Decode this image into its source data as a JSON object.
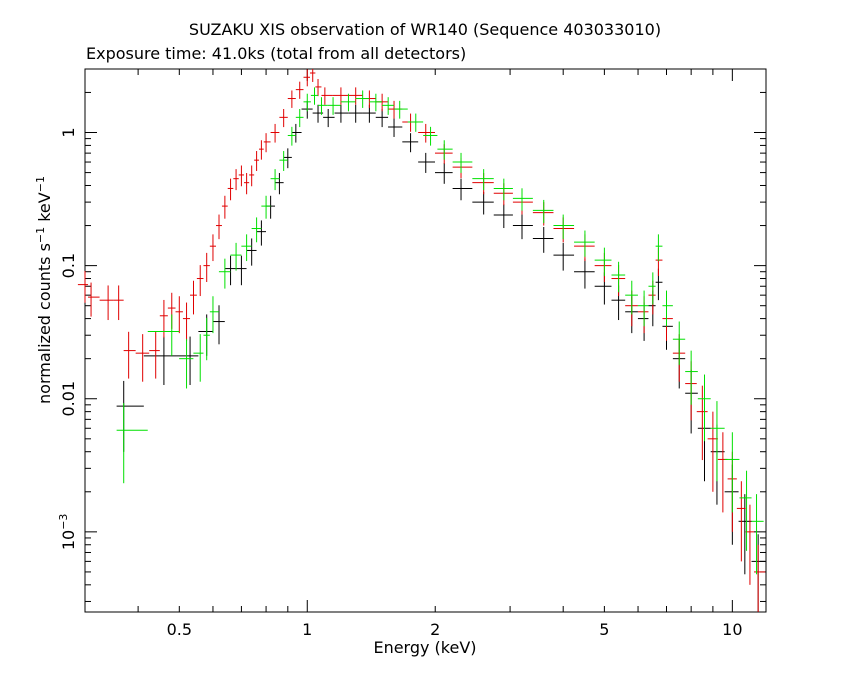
{
  "chart_data": {
    "type": "scatter",
    "title": "SUZAKU XIS observation of WR140 (Sequence 403033010)",
    "subtitle": "Exposure time: 41.0ks (total from all detectors)",
    "xlabel": "Energy (keV)",
    "ylabel_main": "normalized counts s",
    "ylabel_sup1": "−1",
    "ylabel_mid": " keV",
    "ylabel_sup2": "−1",
    "x_scale": "log",
    "y_scale": "log",
    "xlim": [
      0.3,
      12
    ],
    "ylim": [
      0.00025,
      3
    ],
    "x_ticks": [
      {
        "value": 0.5,
        "label": "0.5"
      },
      {
        "value": 1,
        "label": "1"
      },
      {
        "value": 2,
        "label": "2"
      },
      {
        "value": 5,
        "label": "5"
      },
      {
        "value": 10,
        "label": "10"
      }
    ],
    "y_ticks": [
      {
        "value": 1,
        "label": "1"
      },
      {
        "value": 0.1,
        "label": "0.1"
      },
      {
        "value": 0.01,
        "label": "0.01"
      },
      {
        "value": 0.001,
        "label": "10",
        "sup": "−3"
      }
    ],
    "grid": false,
    "legend": "none",
    "series": [
      {
        "color": "#000000",
        "points": [
          [
            0.37,
            0.0088
          ],
          [
            0.46,
            0.021
          ],
          [
            0.53,
            0.021
          ],
          [
            0.58,
            0.032
          ],
          [
            0.62,
            0.038
          ],
          [
            0.66,
            0.095
          ],
          [
            0.7,
            0.095
          ],
          [
            0.74,
            0.13
          ],
          [
            0.78,
            0.18
          ],
          [
            0.82,
            0.28
          ],
          [
            0.86,
            0.42
          ],
          [
            0.9,
            0.65
          ],
          [
            0.94,
            1.0
          ],
          [
            1.0,
            1.5
          ],
          [
            1.06,
            1.4
          ],
          [
            1.12,
            1.3
          ],
          [
            1.2,
            1.4
          ],
          [
            1.3,
            1.4
          ],
          [
            1.4,
            1.4
          ],
          [
            1.5,
            1.3
          ],
          [
            1.6,
            1.1
          ],
          [
            1.75,
            0.85
          ],
          [
            1.9,
            0.6
          ],
          [
            2.1,
            0.5
          ],
          [
            2.3,
            0.38
          ],
          [
            2.6,
            0.3
          ],
          [
            2.9,
            0.24
          ],
          [
            3.2,
            0.2
          ],
          [
            3.6,
            0.16
          ],
          [
            4.0,
            0.12
          ],
          [
            4.5,
            0.09
          ],
          [
            5.0,
            0.07
          ],
          [
            5.4,
            0.055
          ],
          [
            5.8,
            0.045
          ],
          [
            6.2,
            0.04
          ],
          [
            6.5,
            0.05
          ],
          [
            6.7,
            0.075
          ],
          [
            7.0,
            0.035
          ],
          [
            7.5,
            0.02
          ],
          [
            8.0,
            0.011
          ],
          [
            8.6,
            0.006
          ],
          [
            9.2,
            0.004
          ],
          [
            10.0,
            0.002
          ],
          [
            10.7,
            0.0012
          ],
          [
            11.5,
            0.0006
          ]
        ]
      },
      {
        "color": "#e00000",
        "points": [
          [
            0.3,
            0.072
          ],
          [
            0.31,
            0.058
          ],
          [
            0.34,
            0.055
          ],
          [
            0.36,
            0.055
          ],
          [
            0.38,
            0.023
          ],
          [
            0.41,
            0.022
          ],
          [
            0.44,
            0.023
          ],
          [
            0.46,
            0.042
          ],
          [
            0.48,
            0.048
          ],
          [
            0.5,
            0.045
          ],
          [
            0.52,
            0.04
          ],
          [
            0.54,
            0.06
          ],
          [
            0.56,
            0.08
          ],
          [
            0.58,
            0.1
          ],
          [
            0.6,
            0.14
          ],
          [
            0.62,
            0.2
          ],
          [
            0.64,
            0.28
          ],
          [
            0.66,
            0.38
          ],
          [
            0.68,
            0.45
          ],
          [
            0.7,
            0.48
          ],
          [
            0.72,
            0.42
          ],
          [
            0.74,
            0.48
          ],
          [
            0.76,
            0.62
          ],
          [
            0.78,
            0.75
          ],
          [
            0.8,
            0.85
          ],
          [
            0.84,
            1.0
          ],
          [
            0.88,
            1.3
          ],
          [
            0.92,
            1.8
          ],
          [
            0.96,
            2.1
          ],
          [
            1.0,
            2.6
          ],
          [
            1.03,
            2.8
          ],
          [
            1.06,
            2.2
          ],
          [
            1.1,
            1.9
          ],
          [
            1.2,
            1.9
          ],
          [
            1.3,
            1.9
          ],
          [
            1.4,
            1.8
          ],
          [
            1.5,
            1.7
          ],
          [
            1.6,
            1.5
          ],
          [
            1.75,
            1.2
          ],
          [
            1.9,
            1.0
          ],
          [
            2.1,
            0.7
          ],
          [
            2.3,
            0.55
          ],
          [
            2.6,
            0.42
          ],
          [
            2.9,
            0.35
          ],
          [
            3.2,
            0.3
          ],
          [
            3.6,
            0.25
          ],
          [
            4.0,
            0.19
          ],
          [
            4.5,
            0.14
          ],
          [
            5.0,
            0.1
          ],
          [
            5.4,
            0.08
          ],
          [
            5.8,
            0.05
          ],
          [
            6.2,
            0.045
          ],
          [
            6.5,
            0.06
          ],
          [
            6.7,
            0.11
          ],
          [
            7.0,
            0.04
          ],
          [
            7.5,
            0.022
          ],
          [
            8.0,
            0.013
          ],
          [
            8.5,
            0.008
          ],
          [
            9.0,
            0.005
          ],
          [
            9.5,
            0.0035
          ],
          [
            10.0,
            0.0025
          ],
          [
            10.5,
            0.0015
          ],
          [
            11.0,
            0.001
          ],
          [
            11.5,
            0.0005
          ]
        ]
      },
      {
        "color": "#00e000",
        "points": [
          [
            0.37,
            0.0058
          ],
          [
            0.48,
            0.032
          ],
          [
            0.52,
            0.02
          ],
          [
            0.56,
            0.022
          ],
          [
            0.58,
            0.03
          ],
          [
            0.6,
            0.045
          ],
          [
            0.64,
            0.09
          ],
          [
            0.68,
            0.12
          ],
          [
            0.72,
            0.14
          ],
          [
            0.76,
            0.19
          ],
          [
            0.8,
            0.28
          ],
          [
            0.84,
            0.45
          ],
          [
            0.88,
            0.62
          ],
          [
            0.92,
            0.95
          ],
          [
            0.96,
            1.3
          ],
          [
            1.0,
            1.7
          ],
          [
            1.04,
            1.9
          ],
          [
            1.08,
            1.6
          ],
          [
            1.15,
            1.6
          ],
          [
            1.25,
            1.7
          ],
          [
            1.35,
            1.8
          ],
          [
            1.45,
            1.7
          ],
          [
            1.55,
            1.6
          ],
          [
            1.65,
            1.5
          ],
          [
            1.8,
            1.2
          ],
          [
            1.95,
            0.95
          ],
          [
            2.1,
            0.75
          ],
          [
            2.3,
            0.6
          ],
          [
            2.6,
            0.45
          ],
          [
            2.9,
            0.38
          ],
          [
            3.2,
            0.32
          ],
          [
            3.6,
            0.26
          ],
          [
            4.0,
            0.2
          ],
          [
            4.5,
            0.15
          ],
          [
            5.0,
            0.11
          ],
          [
            5.4,
            0.085
          ],
          [
            5.8,
            0.06
          ],
          [
            6.2,
            0.05
          ],
          [
            6.5,
            0.07
          ],
          [
            6.7,
            0.14
          ],
          [
            7.0,
            0.05
          ],
          [
            7.5,
            0.028
          ],
          [
            8.0,
            0.016
          ],
          [
            8.6,
            0.01
          ],
          [
            9.2,
            0.006
          ],
          [
            10.0,
            0.0035
          ],
          [
            10.8,
            0.0018
          ],
          [
            11.4,
            0.0012
          ]
        ]
      }
    ]
  }
}
